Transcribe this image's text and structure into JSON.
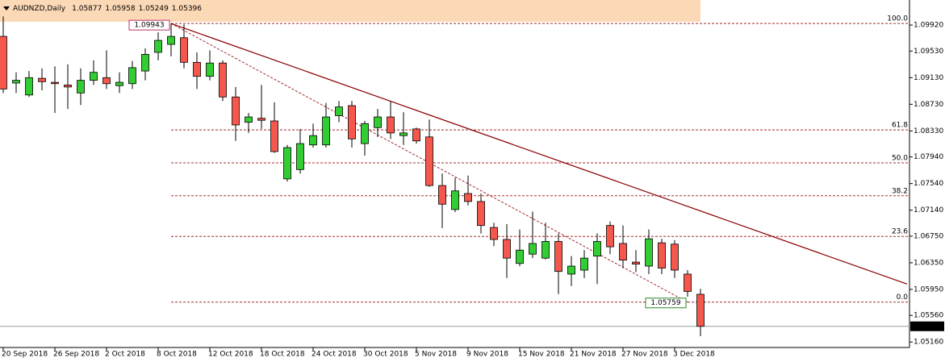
{
  "chart_data": {
    "type": "candlestick",
    "title": "AUDNZD,Daily",
    "categories": [
      "20 Sep 2018",
      null,
      null,
      null,
      "26 Sep 2018",
      null,
      null,
      null,
      "2 Oct 2018",
      null,
      null,
      null,
      "8 Oct 2018",
      null,
      null,
      null,
      "12 Oct 2018",
      null,
      null,
      null,
      "18 Oct 2018",
      null,
      null,
      null,
      "24 Oct 2018",
      null,
      null,
      null,
      "30 Oct 2018",
      null,
      null,
      null,
      "5 Nov 2018",
      null,
      null,
      null,
      "9 Nov 2018",
      null,
      null,
      null,
      "15 Nov 2018",
      null,
      null,
      null,
      "21 Nov 2018",
      null,
      null,
      null,
      "27 Nov 2018",
      null,
      null,
      null,
      "3 Dec 2018",
      null,
      null
    ],
    "open": [
      1.0975,
      1.0905,
      1.0887,
      1.0912,
      1.0906,
      1.0902,
      1.089,
      1.0909,
      1.0913,
      1.0901,
      1.0904,
      1.0923,
      1.0951,
      1.0963,
      1.0973,
      1.0936,
      1.0915,
      1.0935,
      1.0884,
      1.0846,
      1.0852,
      1.0848,
      1.0761,
      1.0775,
      1.0812,
      1.0812,
      1.0856,
      1.0871,
      1.0814,
      1.0838,
      1.0854,
      1.0826,
      1.0836,
      1.0824,
      1.0751,
      1.0715,
      1.0739,
      1.0727,
      1.0688,
      1.067,
      1.0634,
      1.0648,
      1.0642,
      1.0667,
      1.0618,
      1.0624,
      1.0645,
      1.0691,
      1.0664,
      1.0636,
      1.063,
      1.0665,
      1.0663,
      1.0618,
      1.05877
    ],
    "high": [
      1.1005,
      1.0921,
      1.0923,
      1.0927,
      1.093,
      1.0933,
      1.0927,
      1.0939,
      1.0954,
      1.0921,
      1.0938,
      1.0957,
      1.0981,
      1.09943,
      1.0993,
      1.0951,
      1.0954,
      1.0939,
      1.0899,
      1.086,
      1.0902,
      1.0876,
      1.0812,
      1.0836,
      1.0844,
      1.0875,
      1.0878,
      1.0878,
      1.0848,
      1.0866,
      1.0878,
      1.0861,
      1.0838,
      1.085,
      1.0769,
      1.0763,
      1.0766,
      1.0739,
      1.0695,
      1.0693,
      1.0685,
      1.0712,
      1.0695,
      1.0679,
      1.0645,
      1.0654,
      1.0679,
      1.0697,
      1.0691,
      1.0654,
      1.0685,
      1.0671,
      1.0669,
      1.0624,
      1.05958
    ],
    "low": [
      1.089,
      1.089,
      1.0884,
      1.0894,
      1.086,
      1.0866,
      1.0872,
      1.0902,
      1.0896,
      1.089,
      1.0896,
      1.0909,
      1.0939,
      1.0945,
      1.0927,
      1.0896,
      1.0909,
      1.0878,
      1.0818,
      1.083,
      1.0836,
      1.08,
      1.0757,
      1.0769,
      1.0808,
      1.0808,
      1.0846,
      1.0808,
      1.0796,
      1.0824,
      1.0821,
      1.0812,
      1.0814,
      1.0749,
      1.0687,
      1.0711,
      1.0721,
      1.0679,
      1.066,
      1.0612,
      1.063,
      1.0642,
      1.064,
      1.0588,
      1.06,
      1.0612,
      1.0603,
      1.0648,
      1.0627,
      1.0621,
      1.0618,
      1.0618,
      1.0612,
      1.0584,
      1.05249
    ],
    "close": [
      1.0896,
      1.0909,
      1.0913,
      1.0907,
      1.0904,
      1.0899,
      1.0909,
      1.0921,
      1.0904,
      1.0906,
      1.0928,
      1.0948,
      1.0969,
      1.0975,
      1.0936,
      1.0915,
      1.0935,
      1.0884,
      1.0842,
      1.0854,
      1.0849,
      1.0802,
      1.0808,
      1.0814,
      1.0826,
      1.0854,
      1.0869,
      1.0821,
      1.0844,
      1.0854,
      1.083,
      1.083,
      1.0818,
      1.0751,
      1.0723,
      1.0743,
      1.0727,
      1.0691,
      1.067,
      1.0642,
      1.0654,
      1.0664,
      1.0667,
      1.0622,
      1.063,
      1.0642,
      1.0667,
      1.0659,
      1.0639,
      1.0633,
      1.0671,
      1.0627,
      1.0624,
      1.0592,
      1.05396
    ],
    "up_color": "#32cd32",
    "down_color": "#f6574d",
    "ylim": [
      1.0509,
      1.1026
    ],
    "yticks": [
      {
        "value": 1.0992,
        "label": "1.09920"
      },
      {
        "value": 1.0953,
        "label": "1.09530"
      },
      {
        "value": 1.0913,
        "label": "1.09130"
      },
      {
        "value": 1.0873,
        "label": "1.08730"
      },
      {
        "value": 1.0833,
        "label": "1.08330"
      },
      {
        "value": 1.0794,
        "label": "1.07940"
      },
      {
        "value": 1.0754,
        "label": "1.07540"
      },
      {
        "value": 1.0714,
        "label": "1.07140"
      },
      {
        "value": 1.0675,
        "label": "1.06750"
      },
      {
        "value": 1.0635,
        "label": "1.06350"
      },
      {
        "value": 1.0595,
        "label": "1.05950"
      },
      {
        "value": 1.0556,
        "label": "1.05560"
      },
      {
        "value": 1.0516,
        "label": "1.05160"
      }
    ],
    "fib_levels": [
      {
        "label": "100.0",
        "value": 1.09943
      },
      {
        "label": "61.8",
        "value": 1.08345
      },
      {
        "label": "50.0",
        "value": 1.07851
      },
      {
        "label": "38.2",
        "value": 1.07357
      },
      {
        "label": "23.6",
        "value": 1.06746
      },
      {
        "label": "0.0",
        "value": 1.05759
      }
    ],
    "fib_bars": [
      13,
      53
    ],
    "fib_color": "#a52a2a",
    "trendline": {
      "x": [
        13,
        70
      ],
      "y": [
        1.09943,
        1.0603
      ],
      "color": "#8b0000"
    },
    "current_price": 1.05396
  }
}
